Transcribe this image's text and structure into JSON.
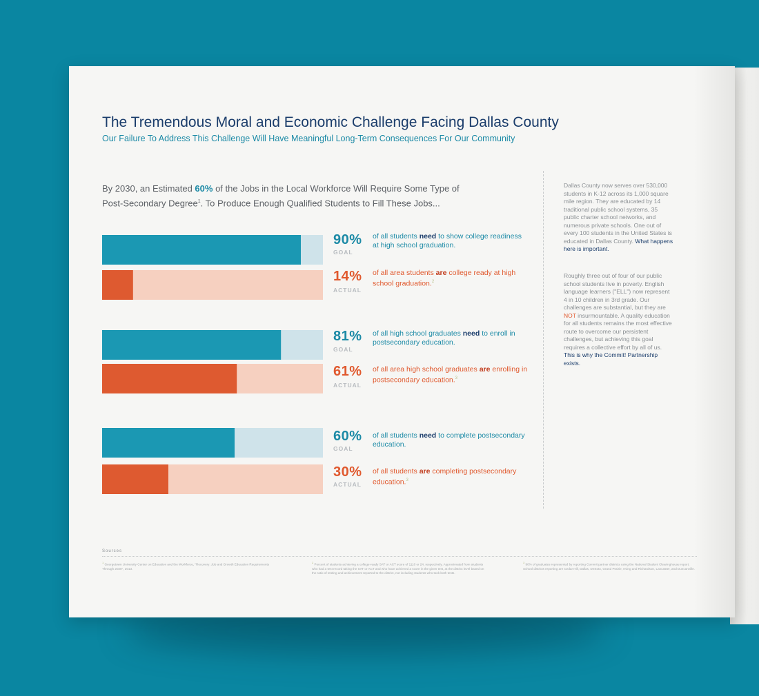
{
  "header": {
    "title": "The Tremendous Moral and Economic Challenge Facing Dallas County",
    "subtitle": "Our Failure To Address This Challenge Will Have Meaningful Long-Term Consequences For Our Community"
  },
  "intro": {
    "line1_pre": "By 2030, an Estimated ",
    "line1_bold": "60%",
    "line1_post": " of the Jobs in the Local Workforce Will Require Some Type of",
    "line2_pre": "Post-Secondary Degree",
    "line2_sup": "1",
    "line2_post": ". To Produce Enough Qualified Students to Fill These Jobs..."
  },
  "colors": {
    "goal_fill": "#1b98b3",
    "goal_track": "#cfe3ea",
    "actual_fill": "#de5a30",
    "actual_track": "#f6d0c0",
    "navy": "#1b3d6b",
    "teal": "#1c8aa6",
    "orange": "#e0592e"
  },
  "chart_data": {
    "type": "bar",
    "orientation": "horizontal",
    "xlim": [
      0,
      100
    ],
    "groups": [
      {
        "goal": {
          "value": 90,
          "label": "90%",
          "tag": "GOAL",
          "desc_pre": "of all students ",
          "desc_bold": "need",
          "desc_post": " to show college readiness at high school graduation.",
          "footnote": ""
        },
        "actual": {
          "value": 14,
          "label": "14%",
          "tag": "ACTUAL",
          "desc_pre": "of all area students ",
          "desc_bold": "are",
          "desc_post": " college ready at high school graduation.",
          "footnote": "2"
        }
      },
      {
        "goal": {
          "value": 81,
          "label": "81%",
          "tag": "GOAL",
          "desc_pre": "of all high school graduates ",
          "desc_bold": "need",
          "desc_post": " to enroll in postsecondary education.",
          "footnote": ""
        },
        "actual": {
          "value": 61,
          "label": "61%",
          "tag": "ACTUAL",
          "desc_pre": "of all area high school graduates ",
          "desc_bold": "are",
          "desc_post": " enrolling in postsecondary education.",
          "footnote": "3"
        }
      },
      {
        "goal": {
          "value": 60,
          "label": "60%",
          "tag": "GOAL",
          "desc_pre": "of all students ",
          "desc_bold": "need",
          "desc_post": " to complete postsecondary education.",
          "footnote": ""
        },
        "actual": {
          "value": 30,
          "label": "30%",
          "tag": "ACTUAL",
          "desc_pre": "of all students ",
          "desc_bold": "are",
          "desc_post": " completing postsecondary education.",
          "footnote": "3"
        }
      }
    ]
  },
  "sidebar": {
    "p1_text": "Dallas County now serves over 530,000 students in K-12 across its 1,000 square mile region. They are educated by 14 traditional public school systems, 35 public charter school networks, and numerous private schools. One out of every 100 students in the United States is educated in Dallas County.",
    "p1_highlight": "What happens here is important.",
    "p2_text_a": "Roughly three out of four of our public school students live in poverty. English language learners (\"ELL\") now represent 4 in 10 children in 3rd grade. Our challenges are substantial, but they are ",
    "p2_red": "NOT",
    "p2_text_b": " insurmountable. A quality education for all students remains the most effective route to overcome our persistent challenges, but achieving this goal requires a collective effort by all of us.",
    "p2_highlight": "This is why the Commit! Partnership exists."
  },
  "sources": {
    "label": "Sources",
    "notes": [
      {
        "num": "1",
        "text": "Georgetown University Center on Education and the Workforce, \"Recovery: Job and Growth Education Requirements Through 2020\", 2013."
      },
      {
        "num": "2",
        "text": "Percent of students achieving a college-ready SAT or ACT score of 1110 or 24, respectively. Approximated from students who had a test record taking the SAT or ACT and who have achieved a score in the given test, at the district level based on the ratio of testing and achievement reported to the district, not including students who took both tests."
      },
      {
        "num": "3",
        "text": "90% of graduates represented by reporting Commit partner districts using the National Student Clearinghouse report. School districts reporting are Cedar Hill, Dallas, DeSoto, Grand Prairie, Irving and Richardson, Lancaster, and Duncanville."
      }
    ]
  }
}
